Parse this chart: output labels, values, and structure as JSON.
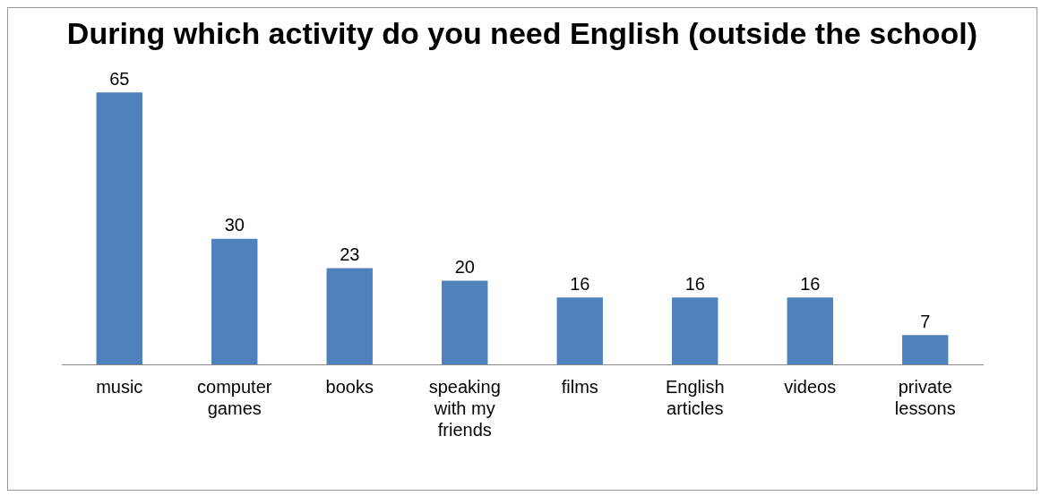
{
  "chart_data": {
    "type": "bar",
    "title": "During which activity do you need English (outside the school)",
    "categories": [
      "music",
      "computer games",
      "books",
      "speaking with my friends",
      "films",
      "English articles",
      "videos",
      "private lessons"
    ],
    "values": [
      65,
      30,
      23,
      20,
      16,
      16,
      16,
      7
    ],
    "color": "#4f81bd",
    "data_labels": true,
    "grid": false,
    "legend": false
  }
}
